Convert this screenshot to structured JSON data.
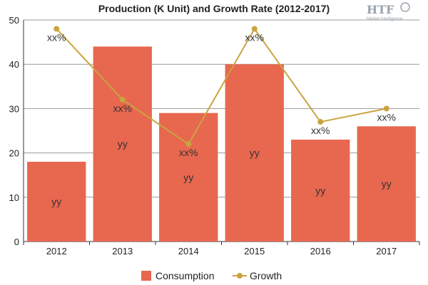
{
  "logo": {
    "text": "HTF",
    "subtitle": "Market Intelligence"
  },
  "chart_data": {
    "type": "bar",
    "title": "Production (K Unit) and Growth Rate (2012-2017)",
    "categories": [
      "2012",
      "2013",
      "2014",
      "2015",
      "2016",
      "2017"
    ],
    "ylim": [
      0,
      50
    ],
    "yticks": [
      0,
      10,
      20,
      30,
      40,
      50
    ],
    "grid": true,
    "legend_position": "bottom",
    "series": [
      {
        "name": "Consumption",
        "type": "bar",
        "color": "#e8674f",
        "values": [
          18,
          44,
          29,
          40,
          23,
          26
        ],
        "labels": [
          "yy",
          "yy",
          "yy",
          "yy",
          "yy",
          "yy"
        ]
      },
      {
        "name": "Growth",
        "type": "line",
        "color": "#c9a43f",
        "values": [
          48,
          32,
          22,
          48,
          27,
          30
        ],
        "labels": [
          "xx%",
          "xx%",
          "xx%",
          "xx%",
          "xx%",
          "xx%"
        ]
      }
    ]
  }
}
